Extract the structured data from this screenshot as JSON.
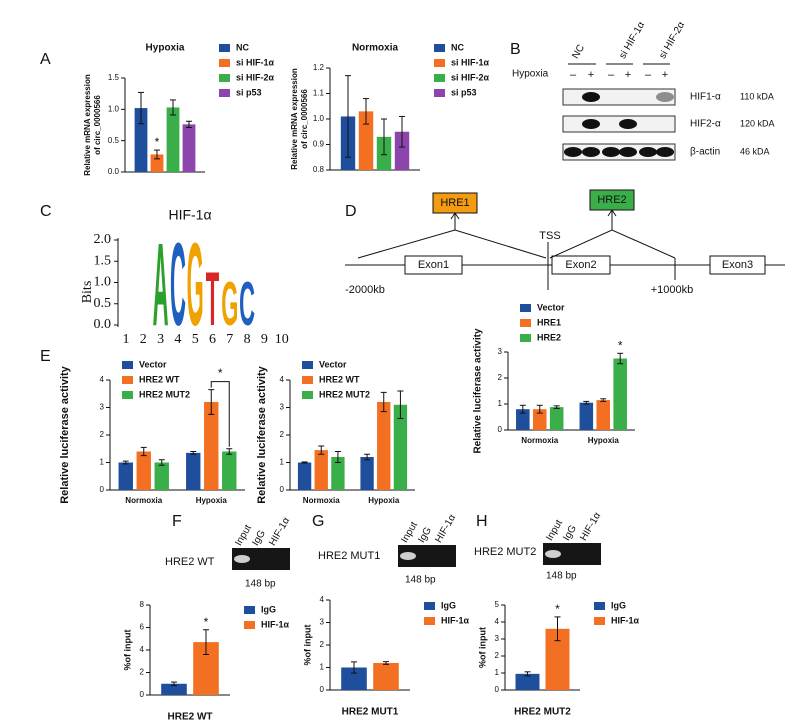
{
  "panel_labels": [
    "A",
    "B",
    "C",
    "D",
    "E",
    "F",
    "G",
    "H"
  ],
  "chart_data": [
    {
      "type": "bar",
      "title": "Hypoxia",
      "y_label": [
        "Relative mRNA expression",
        "of circ_0000566"
      ],
      "categories": [
        null
      ],
      "series": [
        {
          "name": "NC",
          "color": "#1f4e9c",
          "values": [
            1.02
          ],
          "errors": [
            0.25
          ]
        },
        {
          "name": "si HIF-1α",
          "color": "#f36f21",
          "values": [
            0.28
          ],
          "errors": [
            0.07
          ]
        },
        {
          "name": "si HIF-2α",
          "color": "#3aae49",
          "values": [
            1.03
          ],
          "errors": [
            0.12
          ]
        },
        {
          "name": "si p53",
          "color": "#8e44ad",
          "values": [
            0.76
          ],
          "errors": [
            0.05
          ]
        }
      ],
      "ylim": [
        0,
        1.5
      ],
      "yticks": [
        {
          "value": 0,
          "label": "0.0"
        },
        0.5,
        {
          "value": 1,
          "label": "1.0"
        },
        1.5
      ],
      "legend": "right",
      "annotation": "*"
    },
    {
      "type": "bar",
      "title": "Normoxia",
      "y_label": [
        "Relative mRNA expression",
        "of circ_0000566"
      ],
      "categories": [
        null
      ],
      "series": [
        {
          "name": "NC",
          "color": "#1f4e9c",
          "values": [
            1.01
          ],
          "errors": [
            0.16
          ]
        },
        {
          "name": "si HIF-1α",
          "color": "#f36f21",
          "values": [
            1.03
          ],
          "errors": [
            0.05
          ]
        },
        {
          "name": "si HIF-2α",
          "color": "#3aae49",
          "values": [
            0.93
          ],
          "errors": [
            0.07
          ]
        },
        {
          "name": "si p53",
          "color": "#8e44ad",
          "values": [
            0.95
          ],
          "errors": [
            0.06
          ]
        }
      ],
      "ylim": [
        0.8,
        1.2
      ],
      "yticks": [
        0.8,
        0.9,
        {
          "value": 1,
          "label": "1.0"
        },
        1.1,
        1.2
      ],
      "legend": "right"
    },
    {
      "type": "bar",
      "y_label": [
        "Relative luciferase activity"
      ],
      "categories": [
        "Normoxia",
        "Hypoxia"
      ],
      "series": [
        {
          "name": "Vector",
          "color": "#1f4e9c",
          "values": [
            0.8,
            1.05
          ],
          "errors": [
            0.15,
            0.05
          ]
        },
        {
          "name": "HRE1",
          "color": "#f36f21",
          "values": [
            0.8,
            1.15
          ],
          "errors": [
            0.15,
            0.05
          ]
        },
        {
          "name": "HRE2",
          "color": "#3aae49",
          "values": [
            0.88,
            2.75
          ],
          "errors": [
            0.05,
            0.2
          ]
        }
      ],
      "ylim": [
        0,
        3
      ],
      "yticks": [
        0,
        1,
        2,
        3
      ],
      "legend": "upper left",
      "annotation": "*"
    },
    {
      "type": "bar",
      "y_label": [
        "Relative luciferase activity"
      ],
      "categories": [
        "Normoxia",
        "Hypoxia"
      ],
      "series": [
        {
          "name": "Vector",
          "color": "#1f4e9c",
          "values": [
            1.0,
            1.35
          ],
          "errors": [
            0.05,
            0.05
          ]
        },
        {
          "name": "HRE2 WT",
          "color": "#f36f21",
          "values": [
            1.4,
            3.2
          ],
          "errors": [
            0.15,
            0.45
          ]
        },
        {
          "name": "HRE2 MUT2",
          "color": "#3aae49",
          "values": [
            1.0,
            1.4
          ],
          "errors": [
            0.1,
            0.1
          ]
        }
      ],
      "ylim": [
        0,
        4
      ],
      "yticks": [
        0,
        1,
        2,
        3,
        4
      ],
      "legend": "upper left",
      "annotation": "*"
    },
    {
      "type": "bar",
      "y_label": [
        "Relative luciferase activity"
      ],
      "categories": [
        "Normoxia",
        "Hypoxia"
      ],
      "series": [
        {
          "name": "Vector",
          "color": "#1f4e9c",
          "values": [
            1.0,
            1.2
          ],
          "errors": [
            0.02,
            0.1
          ]
        },
        {
          "name": "HRE2 WT",
          "color": "#f36f21",
          "values": [
            1.45,
            3.2
          ],
          "errors": [
            0.15,
            0.35
          ]
        },
        {
          "name": "HRE2 MUT2",
          "color": "#3aae49",
          "values": [
            1.2,
            3.1
          ],
          "errors": [
            0.2,
            0.5
          ]
        }
      ],
      "ylim": [
        0,
        4
      ],
      "yticks": [
        0,
        1,
        2,
        3,
        4
      ],
      "legend": "upper left"
    },
    {
      "type": "bar",
      "y_label": [
        "%of input"
      ],
      "x_label": "HRE2 WT",
      "categories": [
        null
      ],
      "series": [
        {
          "name": "IgG",
          "color": "#1f4e9c",
          "values": [
            1.0
          ],
          "errors": [
            0.15
          ]
        },
        {
          "name": "HIF-1α",
          "color": "#f36f21",
          "values": [
            4.7
          ],
          "errors": [
            1.1
          ]
        }
      ],
      "ylim": [
        0,
        8
      ],
      "yticks": [
        0,
        2,
        4,
        6,
        8
      ],
      "legend": "right",
      "annotation": "*"
    },
    {
      "type": "bar",
      "y_label": [
        "%of input"
      ],
      "x_label": "HRE2 MUT1",
      "categories": [
        null
      ],
      "series": [
        {
          "name": "IgG",
          "color": "#1f4e9c",
          "values": [
            1.0
          ],
          "errors": [
            0.25
          ]
        },
        {
          "name": "HIF-1α",
          "color": "#f36f21",
          "values": [
            1.2
          ],
          "errors": [
            0.06
          ]
        }
      ],
      "ylim": [
        0,
        4
      ],
      "yticks": [
        0,
        1,
        2,
        3,
        4
      ],
      "legend": "right"
    },
    {
      "type": "bar",
      "y_label": [
        "%of input"
      ],
      "x_label": "HRE2 MUT2",
      "categories": [
        null
      ],
      "series": [
        {
          "name": "IgG",
          "color": "#1f4e9c",
          "values": [
            0.95
          ],
          "errors": [
            0.12
          ]
        },
        {
          "name": "HIF-1α",
          "color": "#f36f21",
          "values": [
            3.6
          ],
          "errors": [
            0.7
          ]
        }
      ],
      "ylim": [
        0,
        5
      ],
      "yticks": [
        0,
        1,
        2,
        3,
        4,
        5
      ],
      "legend": "right",
      "annotation": "*"
    }
  ],
  "blot": {
    "columns": [
      "NC",
      "si HIF-1α",
      "si HIF-2α"
    ],
    "condition": "Hypoxia",
    "lanes": [
      "–",
      "+",
      "–",
      "+",
      "–",
      "+"
    ],
    "rows": [
      {
        "name": "HIF1-α",
        "size": "110 kDA"
      },
      {
        "name": "HIF2-α",
        "size": "120 kDA"
      },
      {
        "name": "β-actin",
        "size": "46 kDA"
      }
    ]
  },
  "logo": {
    "title": "HIF-1α",
    "y_label": "Bits",
    "yticks": [
      "0.0",
      "0.5",
      "1.0",
      "1.5",
      "2.0"
    ],
    "positions": [
      "1",
      "2",
      "3",
      "4",
      "5",
      "6",
      "7",
      "8",
      "9",
      "10"
    ],
    "letters": [
      "A",
      "C",
      "G",
      "T",
      "G",
      "C"
    ]
  },
  "gene_diagram": {
    "hre1": "HRE1",
    "hre2": "HRE2",
    "tss": "TSS",
    "exons": [
      "Exon1",
      "Exon2",
      "Exon3"
    ],
    "marks": [
      "-2000kb",
      "+1000kb"
    ]
  },
  "chip": [
    {
      "lanes": [
        "Input",
        "IgG",
        "HIF-1α"
      ],
      "probe": "HRE2 WT",
      "size": "148 bp"
    },
    {
      "lanes": [
        "Input",
        "IgG",
        "HIF-1α"
      ],
      "probe": "HRE2 MUT1",
      "size": "148 bp"
    },
    {
      "lanes": [
        "Input",
        "IgG",
        "HIF-1α"
      ],
      "probe": "HRE2 MUT2",
      "size": "148 bp"
    }
  ]
}
